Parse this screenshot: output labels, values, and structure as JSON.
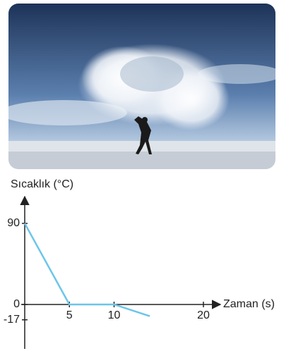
{
  "chart_data": {
    "type": "line",
    "y_label": "Sıcaklık (°C)",
    "x_label": "Zaman (s)",
    "x": [
      0,
      5,
      10,
      14
    ],
    "series": [
      {
        "name": "Sıcaklık",
        "color": "#6cc5ea",
        "values": [
          90,
          0,
          0,
          -13
        ]
      }
    ],
    "xlim": [
      0,
      21
    ],
    "xticks": [
      5,
      10,
      20
    ],
    "ylim": [
      -50,
      115
    ],
    "yticks": [
      90,
      0,
      -17
    ]
  }
}
